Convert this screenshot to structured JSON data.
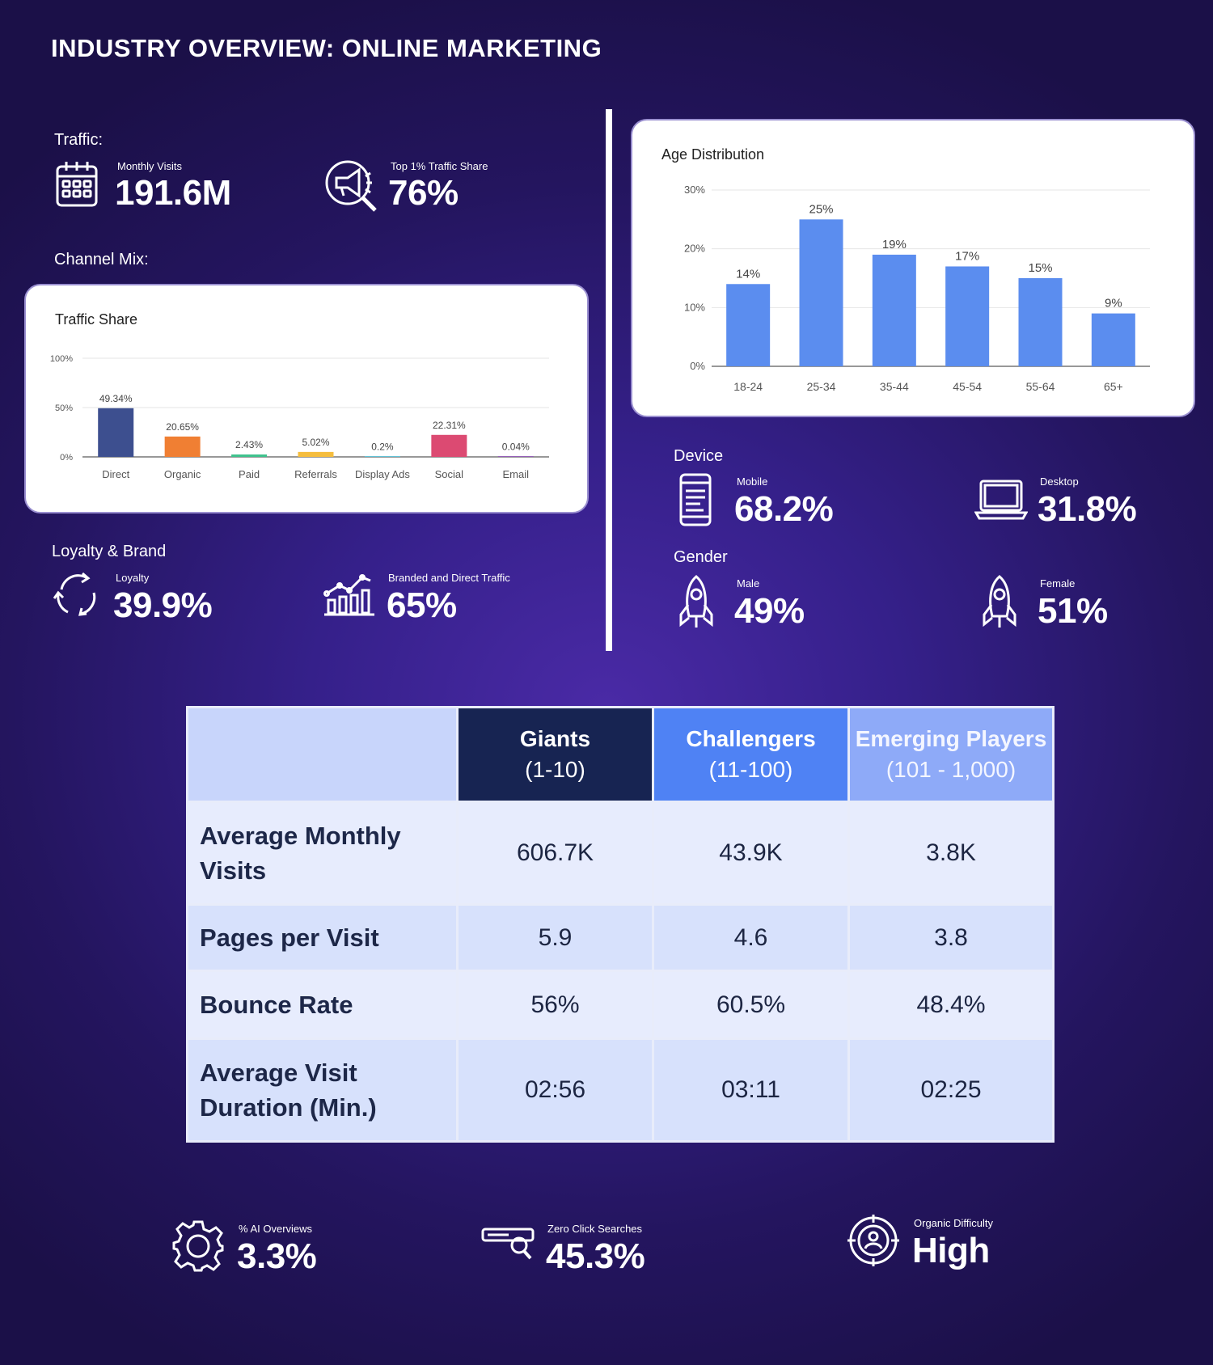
{
  "title": "INDUSTRY OVERVIEW: ONLINE MARKETING",
  "traffic": {
    "label": "Traffic:",
    "monthly_visits_label": "Monthly Visits",
    "monthly_visits_value": "191.6M",
    "top_share_label": "Top 1% Traffic Share",
    "top_share_value": "76%"
  },
  "channel_mix": {
    "label": "Channel Mix:"
  },
  "loyalty_brand": {
    "label": "Loyalty & Brand",
    "loyalty_label": "Loyalty",
    "loyalty_value": "39.9%",
    "branded_label": "Branded and Direct Traffic",
    "branded_value": "65%"
  },
  "device": {
    "label": "Device",
    "mobile_label": "Mobile",
    "mobile_value": "68.2%",
    "desktop_label": "Desktop",
    "desktop_value": "31.8%"
  },
  "gender": {
    "label": "Gender",
    "male_label": "Male",
    "male_value": "49%",
    "female_label": "Female",
    "female_value": "51%"
  },
  "chart_data": [
    {
      "type": "bar",
      "title": "Traffic Share",
      "categories": [
        "Direct",
        "Organic",
        "Paid",
        "Referrals",
        "Display Ads",
        "Social",
        "Email"
      ],
      "values": [
        49.34,
        20.65,
        2.43,
        5.02,
        0.2,
        22.31,
        0.04
      ],
      "data_labels": [
        "49.34%",
        "20.65%",
        "2.43%",
        "5.02%",
        "0.2%",
        "22.31%",
        "0.04%"
      ],
      "colors": [
        "#3d4f8f",
        "#f07f33",
        "#3ec28d",
        "#f5bd3d",
        "#43c6e0",
        "#dc4a72",
        "#8a3fb8"
      ],
      "y_ticks": [
        "0%",
        "50%",
        "100%"
      ],
      "ylim": [
        0,
        100
      ],
      "grid": true
    },
    {
      "type": "bar",
      "title": "Age Distribution",
      "categories": [
        "18-24",
        "25-34",
        "35-44",
        "45-54",
        "55-64",
        "65+"
      ],
      "values": [
        14,
        25,
        19,
        17,
        15,
        9
      ],
      "data_labels": [
        "14%",
        "25%",
        "19%",
        "17%",
        "15%",
        "9%"
      ],
      "colors": [
        "#5b8def"
      ],
      "y_ticks": [
        "0%",
        "10%",
        "20%",
        "30%"
      ],
      "ylim": [
        0,
        30
      ],
      "grid": true
    }
  ],
  "table": {
    "headers": [
      {
        "name": "Giants",
        "range": "(1-10)"
      },
      {
        "name": "Challengers",
        "range": "(11-100)"
      },
      {
        "name": "Emerging Players",
        "range": "(101 - 1,000)"
      }
    ],
    "rows": [
      {
        "label": "Average Monthly Visits",
        "values": [
          "606.7K",
          "43.9K",
          "3.8K"
        ]
      },
      {
        "label": "Pages per Visit",
        "values": [
          "5.9",
          "4.6",
          "3.8"
        ]
      },
      {
        "label": "Bounce Rate",
        "values": [
          "56%",
          "60.5%",
          "48.4%"
        ]
      },
      {
        "label": "Average Visit Duration (Min.)",
        "values": [
          "02:56",
          "03:11",
          "02:25"
        ]
      }
    ]
  },
  "footer": {
    "ai_label": "% AI Overviews",
    "ai_value": "3.3%",
    "zero_click_label": "Zero Click Searches",
    "zero_click_value": "45.3%",
    "organic_label": "Organic Difficulty",
    "organic_value": "High"
  },
  "colors": {
    "accent_blue": "#5b8def",
    "table_dark": "#172452",
    "table_blue": "#4f82f4",
    "table_light_blue": "#8eaaf8"
  }
}
